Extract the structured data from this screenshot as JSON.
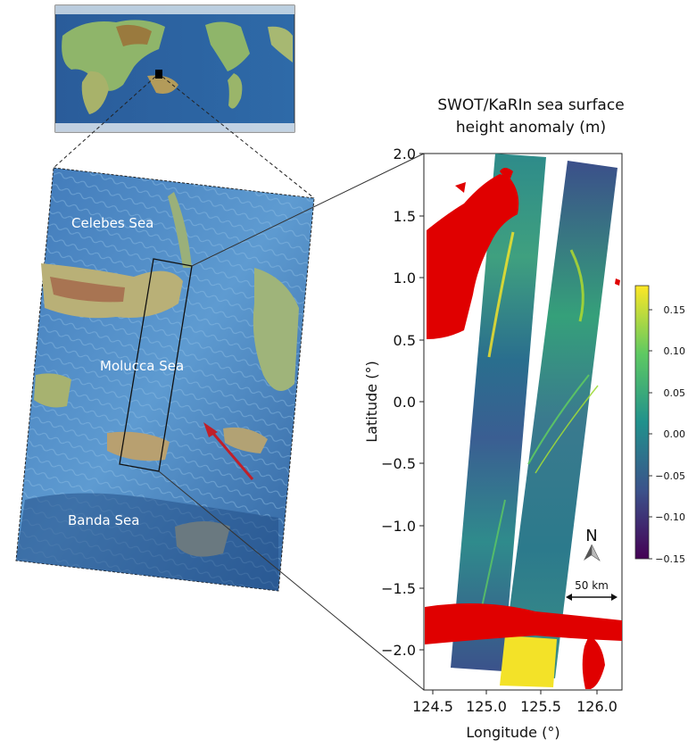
{
  "title": {
    "line1": "SWOT/KaRIn sea surface",
    "line2": "height anomaly (m)"
  },
  "map_labels": {
    "celebes": "Celebes Sea",
    "molucca": "Molucca Sea",
    "banda": "Banda Sea"
  },
  "axes": {
    "xlabel": "Longitude (°)",
    "ylabel": "Latitude (°)",
    "xticks": [
      "124.5",
      "125.0",
      "125.5",
      "126.0"
    ],
    "yticks": [
      "2.0",
      "1.5",
      "1.0",
      "0.5",
      "0.0",
      "−0.5",
      "−1.0",
      "−1.5",
      "−2.0"
    ]
  },
  "colorbar": {
    "ticks": [
      "0.15",
      "0.10",
      "0.05",
      "0.00",
      "−0.05",
      "−0.10",
      "−0.15"
    ],
    "colors": [
      "#fde725",
      "#5ec962",
      "#21918c",
      "#3b528b",
      "#440154"
    ]
  },
  "annotations": {
    "north": "N",
    "scale": "50 km"
  },
  "colors": {
    "land_mask": "#e00000",
    "arrow": "#c0202a"
  }
}
